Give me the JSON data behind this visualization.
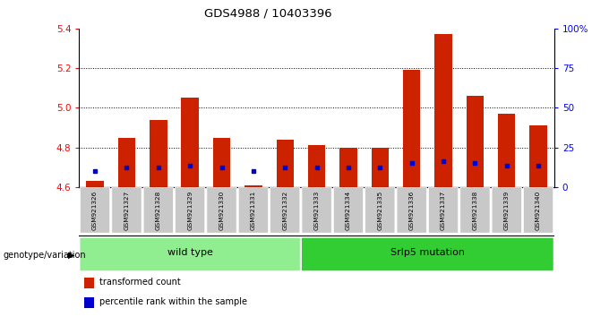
{
  "title": "GDS4988 / 10403396",
  "samples": [
    "GSM921326",
    "GSM921327",
    "GSM921328",
    "GSM921329",
    "GSM921330",
    "GSM921331",
    "GSM921332",
    "GSM921333",
    "GSM921334",
    "GSM921335",
    "GSM921336",
    "GSM921337",
    "GSM921338",
    "GSM921339",
    "GSM921340"
  ],
  "red_values": [
    4.63,
    4.85,
    4.94,
    5.05,
    4.85,
    4.61,
    4.84,
    4.81,
    4.8,
    4.8,
    5.19,
    5.37,
    5.06,
    4.97,
    4.91
  ],
  "blue_values": [
    4.68,
    4.7,
    4.7,
    4.71,
    4.7,
    4.68,
    4.7,
    4.7,
    4.7,
    4.7,
    4.72,
    4.73,
    4.72,
    4.71,
    4.71
  ],
  "ymin": 4.6,
  "ymax": 5.4,
  "yticks": [
    4.6,
    4.8,
    5.0,
    5.2,
    5.4
  ],
  "right_yticks": [
    0,
    25,
    50,
    75,
    100
  ],
  "right_ytick_vals": [
    4.6,
    4.8,
    5.0,
    5.2,
    5.4
  ],
  "groups": [
    {
      "label": "wild type",
      "start": 0,
      "end": 7,
      "color": "#90EE90"
    },
    {
      "label": "Srlp5 mutation",
      "start": 7,
      "end": 15,
      "color": "#32CD32"
    }
  ],
  "bar_color": "#CC2200",
  "blue_color": "#0000CC",
  "bar_width": 0.55,
  "bg_color": "#ffffff",
  "tick_bg": "#C8C8C8",
  "legend_items": [
    {
      "label": "transformed count",
      "color": "#CC2200"
    },
    {
      "label": "percentile rank within the sample",
      "color": "#0000CC"
    }
  ]
}
